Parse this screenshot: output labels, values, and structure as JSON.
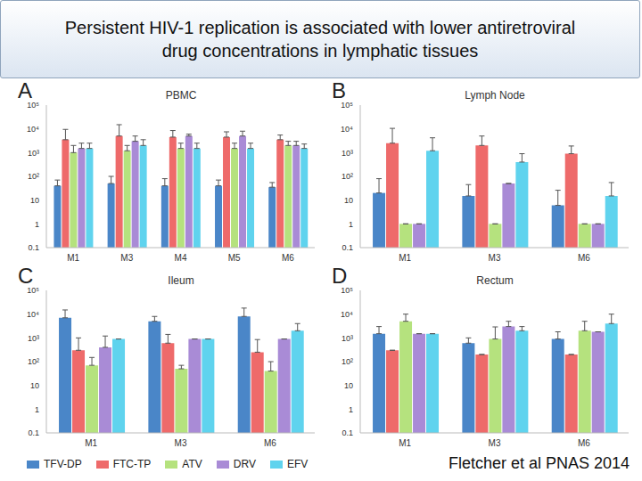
{
  "title": "Persistent HIV-1 replication is associated with lower antiretroviral drug concentrations in lymphatic tissues",
  "citation": "Fletcher et al PNAS 2014",
  "chart_data": [
    {
      "type": "bar",
      "panel": "A",
      "title": "PBMC",
      "log": "y",
      "ylim": [
        0.1,
        100000
      ],
      "yticks": [
        0.1,
        1,
        10,
        {
          "value": 100,
          "label": "10²"
        },
        {
          "value": 1000,
          "label": "10³"
        },
        {
          "value": 10000,
          "label": "10⁴"
        },
        {
          "value": 100000,
          "label": "10⁵"
        }
      ],
      "categories": [
        "M1",
        "M3",
        "M4",
        "M5",
        "M6"
      ],
      "series": [
        {
          "name": "TFV-DP",
          "color": "#4a86c8",
          "values": [
            40,
            50,
            40,
            40,
            35
          ],
          "errors": [
            30,
            50,
            40,
            30,
            20
          ]
        },
        {
          "name": "FTC-TP",
          "color": "#ee6a6a",
          "values": [
            3500,
            5000,
            4500,
            4500,
            3500
          ],
          "errors": [
            6000,
            10000,
            4000,
            3000,
            2000
          ]
        },
        {
          "name": "ATV",
          "color": "#b5e27e",
          "values": [
            1000,
            1200,
            1500,
            1500,
            2000
          ],
          "errors": [
            1000,
            800,
            1000,
            1000,
            1000
          ]
        },
        {
          "name": "DRV",
          "color": "#a98bd6",
          "values": [
            1500,
            3000,
            5000,
            5000,
            2000
          ],
          "errors": [
            1000,
            2000,
            1000,
            3000,
            1000
          ]
        },
        {
          "name": "EFV",
          "color": "#5fd3ee",
          "values": [
            1500,
            2000,
            1500,
            1500,
            1500
          ],
          "errors": [
            1000,
            1500,
            1000,
            1000,
            800
          ]
        }
      ]
    },
    {
      "type": "bar",
      "panel": "B",
      "title": "Lymph Node",
      "log": "y",
      "ylim": [
        0.1,
        100000
      ],
      "yticks": [
        0.1,
        1,
        10,
        {
          "value": 100,
          "label": "10²"
        },
        {
          "value": 1000,
          "label": "10³"
        },
        {
          "value": 10000,
          "label": "10⁴"
        },
        {
          "value": 100000,
          "label": "10⁵"
        }
      ],
      "categories": [
        "M1",
        "M3",
        "M6"
      ],
      "series": [
        {
          "name": "TFV-DP",
          "color": "#4a86c8",
          "values": [
            20,
            15,
            6
          ],
          "errors": [
            60,
            30,
            20
          ]
        },
        {
          "name": "FTC-TP",
          "color": "#ee6a6a",
          "values": [
            2500,
            2000,
            900
          ],
          "errors": [
            8000,
            3000,
            1000
          ]
        },
        {
          "name": "ATV",
          "color": "#b5e27e",
          "values": [
            1,
            1,
            1
          ],
          "errors": [
            0,
            0,
            0
          ]
        },
        {
          "name": "DRV",
          "color": "#a98bd6",
          "values": [
            1,
            50,
            1
          ],
          "errors": [
            0,
            0,
            0
          ]
        },
        {
          "name": "EFV",
          "color": "#5fd3ee",
          "values": [
            1200,
            400,
            15
          ],
          "errors": [
            3000,
            500,
            40
          ]
        }
      ]
    },
    {
      "type": "bar",
      "panel": "C",
      "title": "Ileum",
      "log": "y",
      "ylim": [
        0.1,
        100000
      ],
      "yticks": [
        0.1,
        1,
        10,
        {
          "value": 100,
          "label": "10²"
        },
        {
          "value": 1000,
          "label": "10³"
        },
        {
          "value": 10000,
          "label": "10⁴"
        },
        {
          "value": 100000,
          "label": "10⁵"
        }
      ],
      "categories": [
        "M1",
        "M3",
        "M6"
      ],
      "series": [
        {
          "name": "TFV-DP",
          "color": "#4a86c8",
          "values": [
            7000,
            5000,
            8000
          ],
          "errors": [
            8000,
            3000,
            10000
          ]
        },
        {
          "name": "FTC-TP",
          "color": "#ee6a6a",
          "values": [
            300,
            600,
            250
          ],
          "errors": [
            700,
            800,
            600
          ]
        },
        {
          "name": "ATV",
          "color": "#b5e27e",
          "values": [
            70,
            50,
            40
          ],
          "errors": [
            80,
            20,
            60
          ]
        },
        {
          "name": "DRV",
          "color": "#a98bd6",
          "values": [
            400,
            900,
            900
          ],
          "errors": [
            800,
            0,
            0
          ]
        },
        {
          "name": "EFV",
          "color": "#5fd3ee",
          "values": [
            900,
            900,
            2000
          ],
          "errors": [
            0,
            0,
            2000
          ]
        }
      ]
    },
    {
      "type": "bar",
      "panel": "D",
      "title": "Rectum",
      "log": "y",
      "ylim": [
        0.1,
        100000
      ],
      "yticks": [
        0.1,
        1,
        10,
        {
          "value": 100,
          "label": "10²"
        },
        {
          "value": 1000,
          "label": "10³"
        },
        {
          "value": 10000,
          "label": "10⁴"
        },
        {
          "value": 100000,
          "label": "10⁵"
        }
      ],
      "categories": [
        "M1",
        "M3",
        "M6"
      ],
      "series": [
        {
          "name": "TFV-DP",
          "color": "#4a86c8",
          "values": [
            1500,
            600,
            900
          ],
          "errors": [
            1500,
            400,
            900
          ]
        },
        {
          "name": "FTC-TP",
          "color": "#ee6a6a",
          "values": [
            300,
            200,
            200
          ],
          "errors": [
            0,
            0,
            0
          ]
        },
        {
          "name": "ATV",
          "color": "#b5e27e",
          "values": [
            5000,
            900,
            2000
          ],
          "errors": [
            5000,
            2000,
            3000
          ]
        },
        {
          "name": "DRV",
          "color": "#a98bd6",
          "values": [
            1500,
            3000,
            1800
          ],
          "errors": [
            0,
            2000,
            0
          ]
        },
        {
          "name": "EFV",
          "color": "#5fd3ee",
          "values": [
            1500,
            2000,
            4000
          ],
          "errors": [
            0,
            1000,
            6000
          ]
        }
      ]
    }
  ]
}
